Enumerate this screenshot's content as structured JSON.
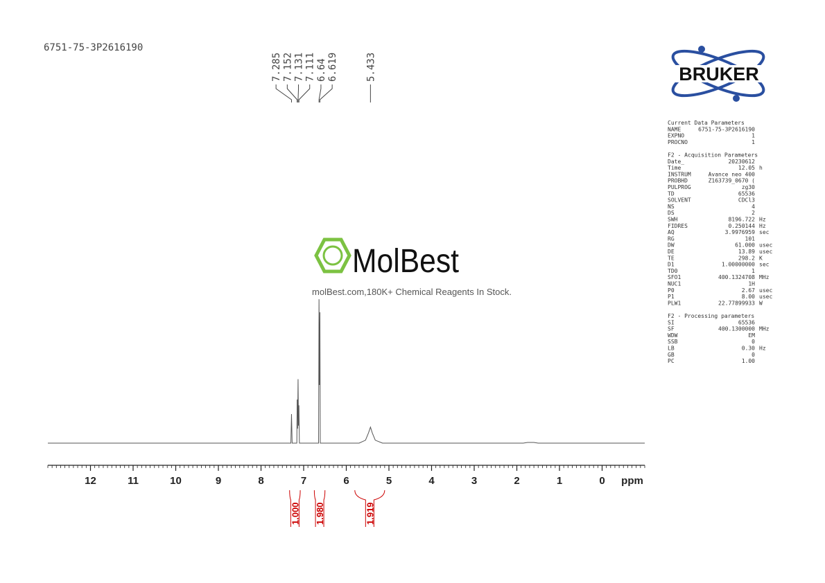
{
  "chart_data": {
    "type": "nmr",
    "title": "6751-75-3P2616190",
    "x_label": "ppm",
    "xlim": [
      13,
      -1
    ],
    "xticks": [
      12,
      11,
      10,
      9,
      8,
      7,
      6,
      5,
      4,
      3,
      2,
      1,
      0
    ],
    "minor_tick_step": 0.1,
    "ylim": [
      0,
      100
    ],
    "color": "#555555",
    "x": [
      13,
      7.3,
      7.285,
      7.27,
      7.16,
      7.152,
      7.142,
      7.131,
      7.121,
      7.111,
      7.1,
      6.65,
      6.64,
      6.629,
      6.619,
      6.61,
      5.7,
      5.55,
      5.48,
      5.433,
      5.39,
      5.32,
      5.15,
      1.85,
      1.75,
      1.6,
      1.5,
      -1
    ],
    "values": [
      0,
      0,
      20,
      0,
      0,
      30,
      10,
      44,
      12,
      26,
      0,
      0,
      99,
      40,
      90,
      0,
      0,
      2,
      7,
      11,
      7,
      2,
      0,
      0,
      0.5,
      0.5,
      0,
      0
    ],
    "peaks": [
      7.285,
      7.152,
      7.131,
      7.111,
      6.64,
      6.619,
      5.433
    ],
    "integral_color": "#cc0000",
    "integrals": [
      {
        "from": 7.33,
        "to": 7.08,
        "value": 1,
        "label": "1.000"
      },
      {
        "from": 6.75,
        "to": 6.5,
        "value": 1.98,
        "label": "1.980"
      },
      {
        "from": 5.8,
        "to": 5.1,
        "value": 1.919,
        "label": "1.919"
      }
    ]
  },
  "watermark": {
    "brand": "MolBest",
    "tagline": "molBest.com,180K+ Chemical Reagents In Stock."
  },
  "logo": {
    "text": "BRUKER"
  },
  "parameters": [
    {
      "title": "Current Data Parameters",
      "rows": [
        [
          "NAME",
          "6751-75-3P2616190"
        ],
        [
          "EXPNO",
          "1"
        ],
        [
          "PROCNO",
          "1"
        ]
      ]
    },
    {
      "title": "F2 - Acquisition Parameters",
      "rows": [
        [
          "Date_",
          "20230612"
        ],
        [
          "Time",
          "12.05",
          "h"
        ],
        [
          "INSTRUM",
          "Avance neo 400"
        ],
        [
          "PROBHD",
          "Z163739_0670 ("
        ],
        [
          "PULPROG",
          "zg30"
        ],
        [
          "TD",
          "65536"
        ],
        [
          "SOLVENT",
          "CDCl3"
        ],
        [
          "NS",
          "4"
        ],
        [
          "DS",
          "2"
        ],
        [
          "SWH",
          "8196.722",
          "Hz"
        ],
        [
          "FIDRES",
          "0.250144",
          "Hz"
        ],
        [
          "AQ",
          "3.9976959",
          "sec"
        ],
        [
          "RG",
          "101"
        ],
        [
          "DW",
          "61.000",
          "usec"
        ],
        [
          "DE",
          "13.89",
          "usec"
        ],
        [
          "TE",
          "298.2",
          "K"
        ],
        [
          "D1",
          "1.00000000",
          "sec"
        ],
        [
          "TD0",
          "1"
        ],
        [
          "SFO1",
          "400.1324708",
          "MHz"
        ],
        [
          "NUC1",
          "1H"
        ],
        [
          "P0",
          "2.67",
          "usec"
        ],
        [
          "P1",
          "8.00",
          "usec"
        ],
        [
          "PLW1",
          "22.77899933",
          "W"
        ]
      ]
    },
    {
      "title": "F2 - Processing parameters",
      "rows": [
        [
          "SI",
          "65536"
        ],
        [
          "SF",
          "400.1300000",
          "MHz"
        ],
        [
          "WDW",
          "EM"
        ],
        [
          "SSB",
          "0"
        ],
        [
          "LB",
          "0.30",
          "Hz"
        ],
        [
          "GB",
          "0"
        ],
        [
          "PC",
          "1.00"
        ]
      ]
    }
  ]
}
